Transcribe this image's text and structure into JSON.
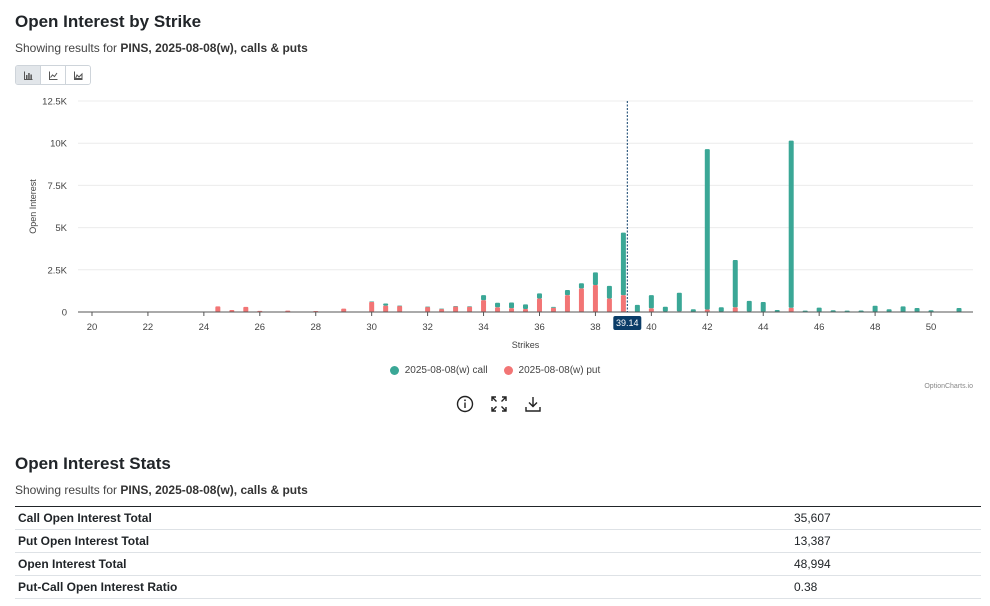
{
  "header": {
    "title": "Open Interest by Strike",
    "subtitle_prefix": "Showing results for ",
    "subtitle_bold": "PINS, 2025-08-08(w), calls & puts"
  },
  "toolbar": {
    "buttons": [
      {
        "icon": "bar-chart-icon",
        "active": true
      },
      {
        "icon": "line-chart-icon",
        "active": false
      },
      {
        "icon": "area-chart-icon",
        "active": false
      }
    ]
  },
  "chart_data": {
    "type": "bar",
    "stacked": true,
    "xlabel": "Strikes",
    "ylabel": "Open Interest",
    "ylim": [
      0,
      12500
    ],
    "yticks": [
      0,
      2500,
      5000,
      7500,
      10000,
      12500
    ],
    "yticklabels": [
      "0",
      "2.5K",
      "5K",
      "7.5K",
      "10K",
      "12.5K"
    ],
    "xlim": [
      19.5,
      51.5
    ],
    "xticks": [
      20,
      22,
      24,
      26,
      28,
      30,
      32,
      34,
      36,
      38,
      40,
      42,
      44,
      46,
      48,
      50
    ],
    "current_price": 39.14,
    "current_price_label": "39.14",
    "grid": true,
    "legend_position": "bottom",
    "colors": {
      "call": "#3aa796",
      "put": "#f27575",
      "price_marker": "#0b3d68"
    },
    "strikes": [
      24.5,
      25,
      25.5,
      26,
      27,
      28,
      29,
      30,
      30.5,
      31,
      32,
      32.5,
      33,
      33.5,
      34,
      34.5,
      35,
      35.5,
      36,
      36.5,
      37,
      37.5,
      38,
      38.5,
      39,
      39.5,
      40,
      40.5,
      41,
      41.5,
      42,
      42.5,
      43,
      43.5,
      44,
      44.5,
      45,
      45.5,
      46,
      46.5,
      47,
      47.5,
      48,
      48.5,
      49,
      49.5,
      50,
      51
    ],
    "series": [
      {
        "name": "2025-08-08(w) put",
        "values": [
          330,
          120,
          300,
          70,
          80,
          60,
          200,
          600,
          380,
          360,
          300,
          180,
          330,
          320,
          700,
          280,
          230,
          180,
          800,
          250,
          1000,
          1400,
          1600,
          800,
          1000,
          0,
          220,
          30,
          40,
          0,
          150,
          20,
          280,
          30,
          20,
          0,
          250,
          0,
          0,
          0,
          0,
          0,
          0,
          0,
          0,
          0,
          0,
          0
        ]
      },
      {
        "name": "2025-08-08(w) call",
        "values": [
          0,
          0,
          0,
          0,
          0,
          0,
          0,
          30,
          120,
          20,
          20,
          20,
          20,
          20,
          300,
          270,
          330,
          270,
          300,
          50,
          300,
          300,
          750,
          750,
          3700,
          420,
          780,
          280,
          1100,
          160,
          9500,
          260,
          2800,
          630,
          570,
          120,
          9900,
          80,
          260,
          100,
          80,
          90,
          370,
          160,
          330,
          240,
          100,
          240
        ]
      }
    ]
  },
  "tools": [
    "info-icon",
    "fullscreen-icon",
    "download-icon"
  ],
  "watermark": "OptionCharts.io",
  "stats": {
    "title": "Open Interest Stats",
    "subtitle_prefix": "Showing results for ",
    "subtitle_bold": "PINS, 2025-08-08(w), calls & puts",
    "rows": [
      {
        "label": "Call Open Interest Total",
        "value": "35,607"
      },
      {
        "label": "Put Open Interest Total",
        "value": "13,387"
      },
      {
        "label": "Open Interest Total",
        "value": "48,994"
      },
      {
        "label": "Put-Call Open Interest Ratio",
        "value": "0.38"
      }
    ]
  }
}
